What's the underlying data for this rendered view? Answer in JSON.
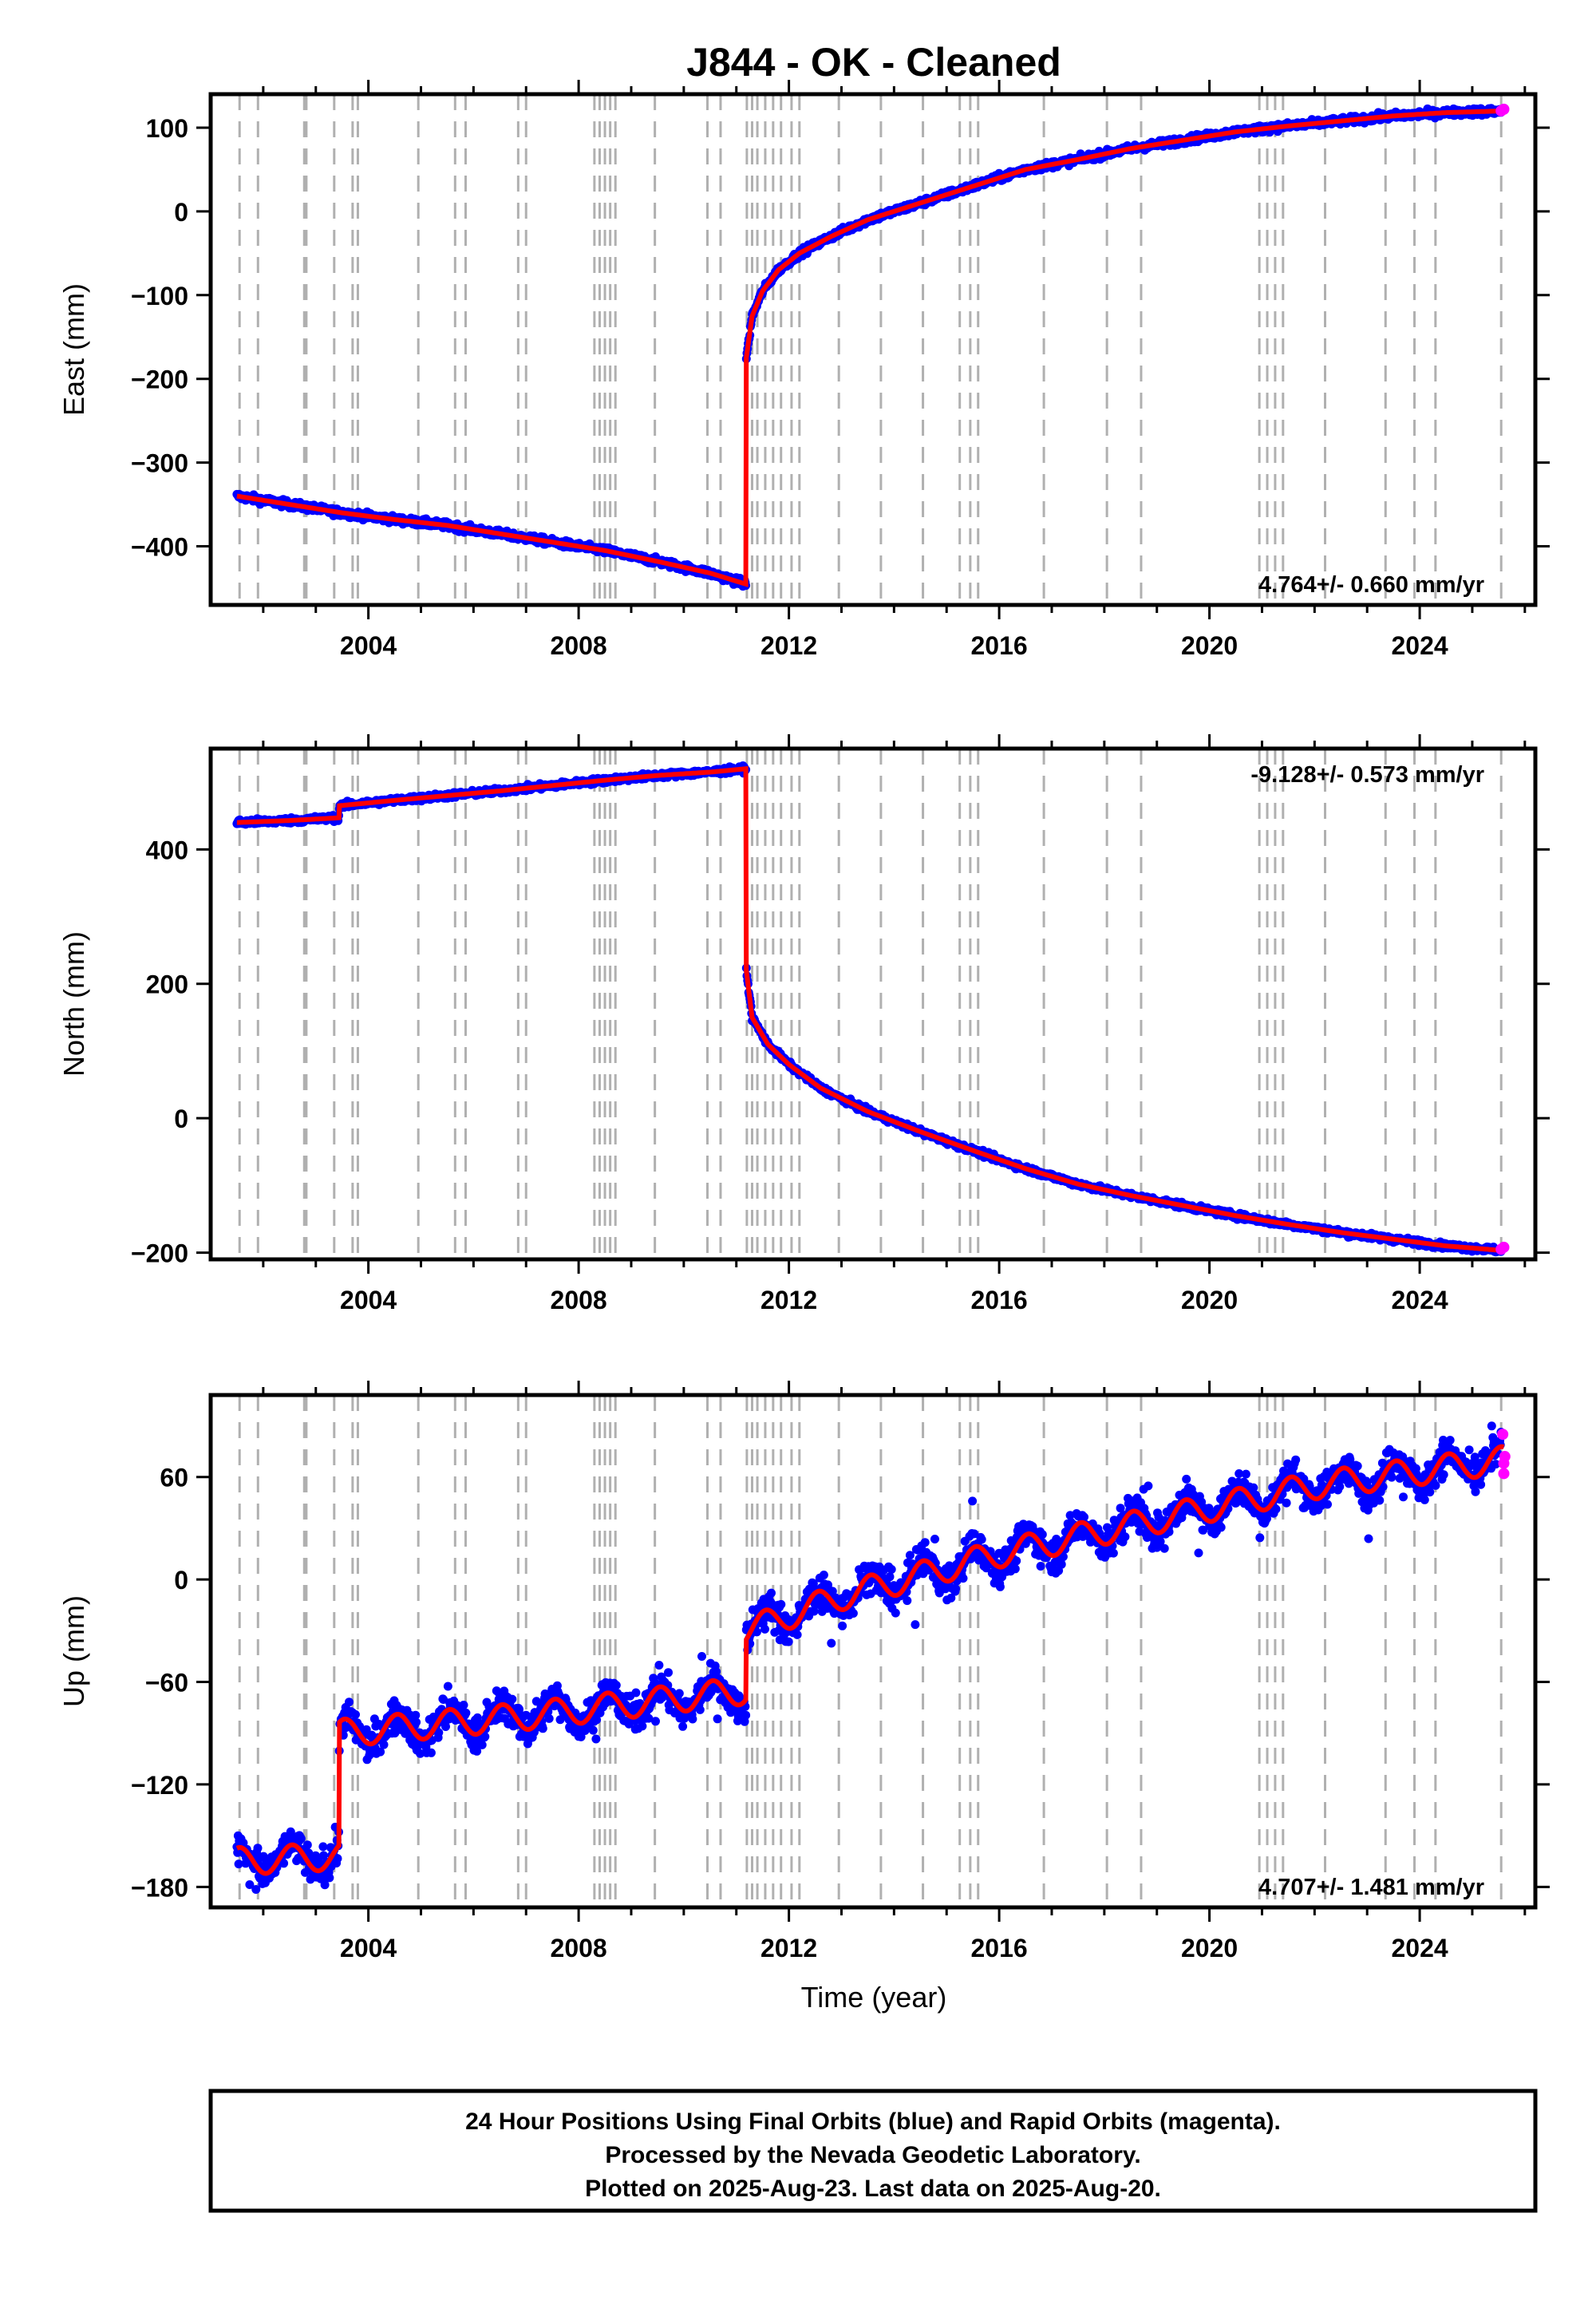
{
  "title": "J844  - OK - Cleaned",
  "xlabel": "Time (year)",
  "footer": {
    "line1": "24 Hour Positions Using Final Orbits (blue) and Rapid Orbits (magenta).",
    "line2": "Processed by the Nevada Geodetic Laboratory.",
    "line3": "Plotted on 2025-Aug-23. Last data on 2025-Aug-20."
  },
  "colors": {
    "final": "#0000ff",
    "rapid": "#ff00ff",
    "model": "#ff0000",
    "event": "#b0b0b0",
    "axis": "#000000"
  },
  "chart_data": [
    {
      "type": "scatter",
      "component": "east",
      "ylabel": "East (mm)",
      "rate": "4.764+/- 0.660 mm/yr",
      "rate_position": "bottom-right",
      "xlim": [
        2001.0,
        2026.2
      ],
      "ylim": [
        -470,
        140
      ],
      "xticks": [
        2004,
        2008,
        2012,
        2016,
        2020,
        2024
      ],
      "xticklabels": [
        "2004",
        "2008",
        "2012",
        "2016",
        "2020",
        "2024"
      ],
      "yticks": [
        -400,
        -300,
        -200,
        -100,
        0,
        100
      ],
      "yticklabels": [
        "−400",
        "−300",
        "−200",
        "−100",
        "0",
        "100"
      ],
      "offsets": [
        {
          "epoch": 2011.19,
          "before": -445,
          "after": -175
        }
      ],
      "model": {
        "type": "line",
        "x": [
          2001.5,
          2002.5,
          2003.5,
          2004.5,
          2005.5,
          2006.5,
          2007.5,
          2008.5,
          2009.5,
          2010.5,
          2011.18,
          2011.19,
          2011.3,
          2011.5,
          2011.8,
          2012.2,
          2012.8,
          2013.5,
          2014.5,
          2015.5,
          2016.5,
          2017.5,
          2018.5,
          2019.5,
          2020.5,
          2021.5,
          2022.5,
          2023.5,
          2024.5,
          2025.6
        ],
        "y": [
          -340,
          -350,
          -360,
          -368,
          -375,
          -385,
          -395,
          -405,
          -418,
          -432,
          -445,
          -175,
          -125,
          -95,
          -70,
          -50,
          -30,
          -10,
          10,
          30,
          50,
          62,
          75,
          85,
          95,
          102,
          108,
          114,
          118,
          120
        ]
      },
      "rapid": {
        "x": [
          2025.55,
          2025.6
        ],
        "y": [
          120,
          122
        ]
      }
    },
    {
      "type": "scatter",
      "component": "north",
      "ylabel": "North (mm)",
      "rate": "-9.128+/- 0.573 mm/yr",
      "rate_position": "top-right",
      "xlim": [
        2001.0,
        2026.2
      ],
      "ylim": [
        -210,
        550
      ],
      "xticks": [
        2004,
        2008,
        2012,
        2016,
        2020,
        2024
      ],
      "xticklabels": [
        "2004",
        "2008",
        "2012",
        "2016",
        "2020",
        "2024"
      ],
      "yticks": [
        -200,
        0,
        200,
        400
      ],
      "yticklabels": [
        "−200",
        "0",
        "200",
        "400"
      ],
      "offsets": [
        {
          "epoch": 2003.45,
          "before": 445,
          "after": 462
        },
        {
          "epoch": 2011.19,
          "before": 520,
          "after": 220
        }
      ],
      "model": {
        "type": "line",
        "x": [
          2001.5,
          2002.5,
          2003.44,
          2003.45,
          2004.5,
          2005.5,
          2006.5,
          2007.5,
          2008.5,
          2009.5,
          2010.5,
          2011.18,
          2011.19,
          2011.3,
          2011.6,
          2012.0,
          2012.6,
          2013.5,
          2014.5,
          2015.5,
          2016.5,
          2017.5,
          2018.5,
          2019.5,
          2020.5,
          2021.5,
          2022.5,
          2023.5,
          2024.5,
          2025.6
        ],
        "y": [
          440,
          443,
          447,
          465,
          473,
          480,
          487,
          495,
          503,
          510,
          515,
          520,
          220,
          150,
          110,
          80,
          45,
          10,
          -20,
          -48,
          -75,
          -98,
          -115,
          -130,
          -145,
          -158,
          -170,
          -180,
          -190,
          -197
        ]
      },
      "rapid": {
        "x": [
          2025.55,
          2025.6
        ],
        "y": [
          -195,
          -192
        ]
      }
    },
    {
      "type": "scatter",
      "component": "up",
      "ylabel": "Up (mm)",
      "rate": "4.707+/- 1.481 mm/yr",
      "rate_position": "bottom-right",
      "xlim": [
        2001.0,
        2026.2
      ],
      "ylim": [
        -192,
        108
      ],
      "xticks": [
        2004,
        2008,
        2012,
        2016,
        2020,
        2024
      ],
      "xticklabels": [
        "2004",
        "2008",
        "2012",
        "2016",
        "2020",
        "2024"
      ],
      "yticks": [
        -180,
        -120,
        -60,
        0,
        60
      ],
      "yticklabels": [
        "−180",
        "−120",
        "−60",
        "0",
        "60"
      ],
      "annual_amplitude": 8,
      "offsets": [
        {
          "epoch": 2003.45,
          "before": -165,
          "after": -90
        },
        {
          "epoch": 2011.19,
          "before": -65,
          "after": -30
        }
      ],
      "model": {
        "type": "line",
        "x": [
          2001.5,
          2003.44,
          2003.45,
          2007.0,
          2011.18,
          2011.19,
          2013.0,
          2016.0,
          2019.0,
          2022.0,
          2025.6
        ],
        "y": [
          -165,
          -162,
          -90,
          -80,
          -65,
          -30,
          -10,
          15,
          35,
          55,
          70
        ]
      },
      "rapid": {
        "x": [
          2025.6,
          2025.6,
          2025.62,
          2025.58
        ],
        "y": [
          62,
          68,
          72,
          85
        ]
      }
    }
  ],
  "events": [
    2001.55,
    2001.9,
    2002.78,
    2002.82,
    2003.35,
    2003.7,
    2003.8,
    2004.95,
    2005.65,
    2005.85,
    2006.85,
    2007.0,
    2008.3,
    2008.4,
    2008.5,
    2008.6,
    2008.7,
    2009.45,
    2010.45,
    2010.7,
    2011.2,
    2011.3,
    2011.4,
    2011.55,
    2011.7,
    2011.85,
    2012.05,
    2012.2,
    2012.95,
    2013.75,
    2014.55,
    2015.25,
    2015.45,
    2015.6,
    2016.85,
    2018.05,
    2018.7,
    2020.95,
    2021.1,
    2021.25,
    2021.4,
    2022.2,
    2023.35,
    2023.9,
    2024.3,
    2025.55
  ]
}
